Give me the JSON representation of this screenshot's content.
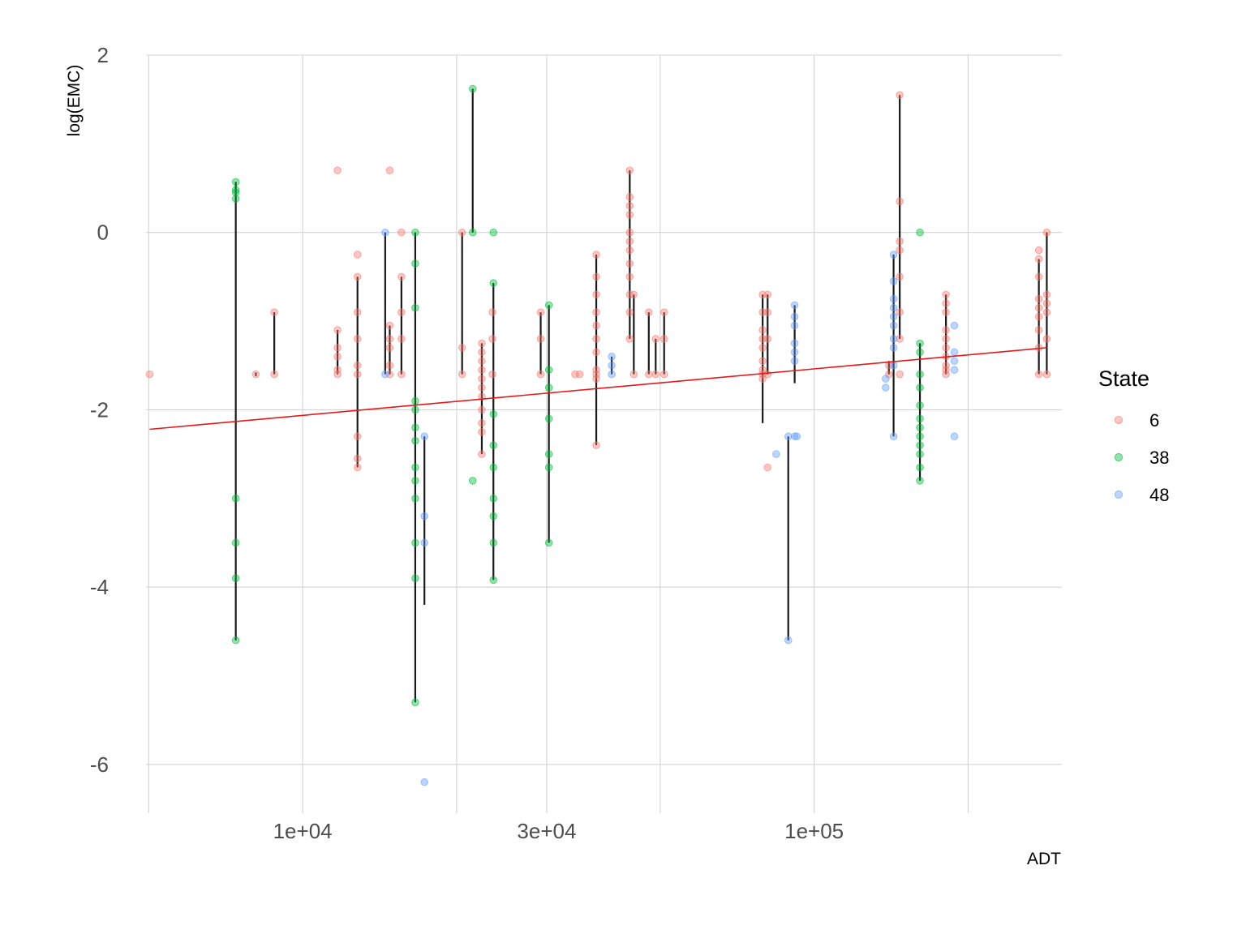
{
  "chart_data": {
    "type": "scatter",
    "xlabel": "ADT",
    "ylabel": "log(EMC)",
    "x_scale": "log10",
    "xlim": [
      4940,
      305000
    ],
    "ylim": [
      -6.55,
      2.0
    ],
    "x_major_ticks": [
      10000,
      30000,
      100000
    ],
    "x_tick_labels": [
      "1e+04",
      "3e+04",
      "1e+05"
    ],
    "x_minor_gridlines": [
      5000,
      20000,
      50000,
      200000
    ],
    "y_ticks": [
      -6,
      -4,
      -2,
      0,
      2
    ],
    "y_tick_labels": [
      "-6",
      "-4",
      "-2",
      "0",
      "2"
    ],
    "grid": true,
    "legend": {
      "title": "State",
      "position": "right",
      "entries": [
        {
          "label": "6",
          "color": "#F8766D"
        },
        {
          "label": "38",
          "color": "#00BA38"
        },
        {
          "label": "48",
          "color": "#619CFF"
        }
      ]
    },
    "series": [
      {
        "name": "6",
        "color": "#F8766D",
        "points": [
          [
            5020,
            -1.6
          ],
          [
            8100,
            -1.6
          ],
          [
            8800,
            -0.9
          ],
          [
            8800,
            -1.6
          ],
          [
            11700,
            0.7
          ],
          [
            11700,
            -1.1
          ],
          [
            11700,
            -1.3
          ],
          [
            11700,
            -1.4
          ],
          [
            11700,
            -1.55
          ],
          [
            11700,
            -1.6
          ],
          [
            12800,
            -0.25
          ],
          [
            12800,
            -0.5
          ],
          [
            12800,
            -0.9
          ],
          [
            12800,
            -1.2
          ],
          [
            12800,
            -1.5
          ],
          [
            12800,
            -1.6
          ],
          [
            12800,
            -2.3
          ],
          [
            12800,
            -2.55
          ],
          [
            12800,
            -2.65
          ],
          [
            14800,
            0.7
          ],
          [
            14800,
            -1.05
          ],
          [
            14800,
            -1.2
          ],
          [
            14800,
            -1.3
          ],
          [
            14800,
            -1.5
          ],
          [
            14800,
            -1.6
          ],
          [
            15600,
            0.0
          ],
          [
            15600,
            -0.5
          ],
          [
            15600,
            -0.9
          ],
          [
            15600,
            -1.2
          ],
          [
            15600,
            -1.6
          ],
          [
            20500,
            0.0
          ],
          [
            20500,
            -1.3
          ],
          [
            20500,
            -1.6
          ],
          [
            22400,
            -1.25
          ],
          [
            22400,
            -1.35
          ],
          [
            22400,
            -1.45
          ],
          [
            22400,
            -1.55
          ],
          [
            22400,
            -1.65
          ],
          [
            22400,
            -1.75
          ],
          [
            22400,
            -1.85
          ],
          [
            22400,
            -2.0
          ],
          [
            22400,
            -2.15
          ],
          [
            22400,
            -2.25
          ],
          [
            22400,
            -2.5
          ],
          [
            23500,
            -0.9
          ],
          [
            23500,
            -1.2
          ],
          [
            23500,
            -1.6
          ],
          [
            29200,
            -0.9
          ],
          [
            29200,
            -1.2
          ],
          [
            29200,
            -1.6
          ],
          [
            34100,
            -1.6
          ],
          [
            34800,
            -1.6
          ],
          [
            37500,
            -0.25
          ],
          [
            37500,
            -0.5
          ],
          [
            37500,
            -0.7
          ],
          [
            37500,
            -0.9
          ],
          [
            37500,
            -1.05
          ],
          [
            37500,
            -1.2
          ],
          [
            37500,
            -1.35
          ],
          [
            37500,
            -1.55
          ],
          [
            37500,
            -1.6
          ],
          [
            37500,
            -1.65
          ],
          [
            37500,
            -2.4
          ],
          [
            43600,
            0.7
          ],
          [
            43600,
            0.4
          ],
          [
            43600,
            0.3
          ],
          [
            43600,
            0.2
          ],
          [
            43600,
            0.0
          ],
          [
            43600,
            -0.1
          ],
          [
            43600,
            -0.2
          ],
          [
            43600,
            -0.35
          ],
          [
            43600,
            -0.5
          ],
          [
            43600,
            -0.7
          ],
          [
            43600,
            -0.9
          ],
          [
            43600,
            -1.2
          ],
          [
            44400,
            -0.7
          ],
          [
            44400,
            -1.6
          ],
          [
            47500,
            -0.9
          ],
          [
            47500,
            -1.6
          ],
          [
            49000,
            -1.2
          ],
          [
            49000,
            -1.6
          ],
          [
            50900,
            -0.9
          ],
          [
            50900,
            -1.2
          ],
          [
            50900,
            -1.6
          ],
          [
            79300,
            -0.7
          ],
          [
            79300,
            -0.9
          ],
          [
            79300,
            -1.1
          ],
          [
            79300,
            -1.2
          ],
          [
            79300,
            -1.3
          ],
          [
            79300,
            -1.45
          ],
          [
            79300,
            -1.55
          ],
          [
            79300,
            -1.6
          ],
          [
            79300,
            -1.65
          ],
          [
            81100,
            -0.7
          ],
          [
            81100,
            -0.9
          ],
          [
            81100,
            -1.2
          ],
          [
            81100,
            -1.6
          ],
          [
            81100,
            -2.65
          ],
          [
            140000,
            -1.5
          ],
          [
            140000,
            -1.6
          ],
          [
            147000,
            1.55
          ],
          [
            147000,
            0.35
          ],
          [
            147000,
            -0.1
          ],
          [
            147000,
            -0.2
          ],
          [
            147000,
            -0.5
          ],
          [
            147000,
            -0.9
          ],
          [
            147000,
            -1.2
          ],
          [
            147000,
            -1.6
          ],
          [
            181000,
            -0.7
          ],
          [
            181000,
            -0.8
          ],
          [
            181000,
            -0.9
          ],
          [
            181000,
            -1.1
          ],
          [
            181000,
            -1.2
          ],
          [
            181000,
            -1.3
          ],
          [
            181000,
            -1.4
          ],
          [
            181000,
            -1.5
          ],
          [
            181000,
            -1.55
          ],
          [
            181000,
            -1.6
          ],
          [
            275000,
            -0.2
          ],
          [
            275000,
            -0.3
          ],
          [
            275000,
            -0.5
          ],
          [
            275000,
            -0.75
          ],
          [
            275000,
            -0.85
          ],
          [
            275000,
            -0.95
          ],
          [
            275000,
            -1.1
          ],
          [
            275000,
            -1.3
          ],
          [
            275000,
            -1.6
          ],
          [
            285000,
            0.0
          ],
          [
            285000,
            -0.7
          ],
          [
            285000,
            -0.8
          ],
          [
            285000,
            -0.9
          ],
          [
            285000,
            -1.2
          ],
          [
            285000,
            -1.6
          ]
        ]
      },
      {
        "name": "38",
        "color": "#00BA38",
        "points": [
          [
            7400,
            0.57
          ],
          [
            7400,
            0.48
          ],
          [
            7400,
            0.45
          ],
          [
            7400,
            0.38
          ],
          [
            7400,
            -3.0
          ],
          [
            7400,
            -3.5
          ],
          [
            7400,
            -3.9
          ],
          [
            7400,
            -4.6
          ],
          [
            16600,
            0.0
          ],
          [
            16600,
            -0.35
          ],
          [
            16600,
            -0.85
          ],
          [
            16600,
            -1.9
          ],
          [
            16600,
            -2.0
          ],
          [
            16600,
            -2.2
          ],
          [
            16600,
            -2.35
          ],
          [
            16600,
            -2.65
          ],
          [
            16600,
            -2.8
          ],
          [
            16600,
            -3.0
          ],
          [
            16600,
            -3.5
          ],
          [
            16600,
            -3.9
          ],
          [
            16600,
            -5.3
          ],
          [
            21500,
            1.62
          ],
          [
            21500,
            0.0
          ],
          [
            21500,
            -2.8
          ],
          [
            23600,
            0.0
          ],
          [
            23600,
            -0.57
          ],
          [
            23600,
            -2.05
          ],
          [
            23600,
            -2.4
          ],
          [
            23600,
            -2.65
          ],
          [
            23600,
            -3.0
          ],
          [
            23600,
            -3.2
          ],
          [
            23600,
            -3.5
          ],
          [
            23600,
            -3.92
          ],
          [
            30300,
            -0.82
          ],
          [
            30300,
            -1.55
          ],
          [
            30300,
            -1.75
          ],
          [
            30300,
            -2.1
          ],
          [
            30300,
            -2.5
          ],
          [
            30300,
            -2.65
          ],
          [
            30300,
            -3.5
          ],
          [
            161000,
            0.0
          ],
          [
            161000,
            -1.25
          ],
          [
            161000,
            -1.35
          ],
          [
            161000,
            -1.6
          ],
          [
            161000,
            -1.75
          ],
          [
            161000,
            -1.95
          ],
          [
            161000,
            -2.1
          ],
          [
            161000,
            -2.2
          ],
          [
            161000,
            -2.3
          ],
          [
            161000,
            -2.4
          ],
          [
            161000,
            -2.5
          ],
          [
            161000,
            -2.65
          ],
          [
            161000,
            -2.8
          ]
        ]
      },
      {
        "name": "48",
        "color": "#619CFF",
        "points": [
          [
            14500,
            0.0
          ],
          [
            14500,
            -1.6
          ],
          [
            17300,
            -2.3
          ],
          [
            17300,
            -3.2
          ],
          [
            17300,
            -3.5
          ],
          [
            17300,
            -6.2
          ],
          [
            40200,
            -1.4
          ],
          [
            40200,
            -1.5
          ],
          [
            40200,
            -1.6
          ],
          [
            84300,
            -2.5
          ],
          [
            89000,
            -2.3
          ],
          [
            89000,
            -4.6
          ],
          [
            91600,
            -0.82
          ],
          [
            91600,
            -0.95
          ],
          [
            91600,
            -1.05
          ],
          [
            91600,
            -1.25
          ],
          [
            91600,
            -1.35
          ],
          [
            91600,
            -1.45
          ],
          [
            91600,
            -2.3
          ],
          [
            92500,
            -2.3
          ],
          [
            138000,
            -1.65
          ],
          [
            138000,
            -1.75
          ],
          [
            143000,
            -0.25
          ],
          [
            143000,
            -0.55
          ],
          [
            143000,
            -0.75
          ],
          [
            143000,
            -0.85
          ],
          [
            143000,
            -0.95
          ],
          [
            143000,
            -1.05
          ],
          [
            143000,
            -1.2
          ],
          [
            143000,
            -1.3
          ],
          [
            143000,
            -1.5
          ],
          [
            143000,
            -2.3
          ],
          [
            188000,
            -1.05
          ],
          [
            188000,
            -1.35
          ],
          [
            188000,
            -1.45
          ],
          [
            188000,
            -1.55
          ],
          [
            188000,
            -2.3
          ]
        ]
      }
    ],
    "vertical_segments": [
      [
        7400,
        0.57,
        -4.6
      ],
      [
        8100,
        -1.58,
        -1.62
      ],
      [
        8800,
        -0.9,
        -1.6
      ],
      [
        11700,
        -1.1,
        -1.6
      ],
      [
        12800,
        -0.5,
        -2.65
      ],
      [
        14500,
        0.0,
        -1.6
      ],
      [
        14800,
        -1.05,
        -1.6
      ],
      [
        15600,
        -0.5,
        -1.6
      ],
      [
        16600,
        0.0,
        -5.3
      ],
      [
        17300,
        -2.3,
        -4.2
      ],
      [
        20500,
        0.0,
        -1.6
      ],
      [
        21500,
        1.62,
        0.0
      ],
      [
        22400,
        -1.25,
        -2.5
      ],
      [
        23600,
        -0.57,
        -3.92
      ],
      [
        29200,
        -0.9,
        -1.6
      ],
      [
        30300,
        -0.82,
        -3.5
      ],
      [
        37500,
        -0.25,
        -2.4
      ],
      [
        40200,
        -1.4,
        -1.6
      ],
      [
        43600,
        0.7,
        -1.2
      ],
      [
        44400,
        -0.7,
        -1.6
      ],
      [
        47500,
        -0.9,
        -1.6
      ],
      [
        49000,
        -1.2,
        -1.6
      ],
      [
        50900,
        -0.9,
        -1.6
      ],
      [
        79300,
        -0.7,
        -2.15
      ],
      [
        81100,
        -0.7,
        -1.6
      ],
      [
        89000,
        -2.3,
        -4.6
      ],
      [
        91600,
        -0.82,
        -1.7
      ],
      [
        140000,
        -1.45,
        -1.6
      ],
      [
        143000,
        -0.25,
        -2.3
      ],
      [
        147000,
        1.55,
        -1.2
      ],
      [
        161000,
        -1.25,
        -2.8
      ],
      [
        181000,
        -0.7,
        -1.6
      ],
      [
        275000,
        -0.3,
        -1.6
      ],
      [
        285000,
        0.0,
        -1.6
      ]
    ],
    "trend_line": {
      "color": "#E31A1C",
      "x": [
        5020,
        285000
      ],
      "y": [
        -2.22,
        -1.3
      ]
    }
  }
}
